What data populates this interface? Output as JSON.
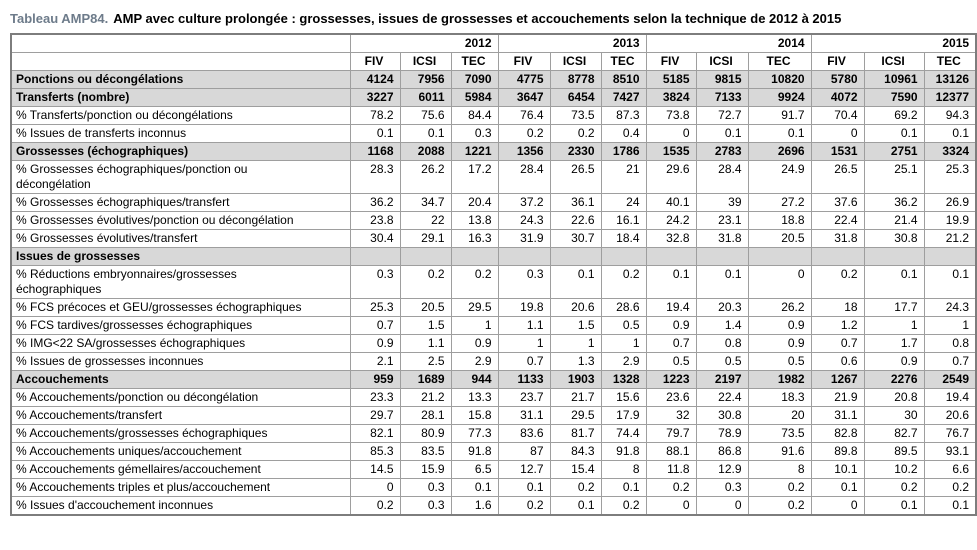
{
  "title": {
    "prefix": "Tableau AMP84.",
    "text": "AMP avec culture prolongée : grossesses, issues de grossesses et accouchements selon la technique de 2012 à 2015"
  },
  "colors": {
    "section_row_background": "#d8d8d8",
    "grid_border": "#9e9e9e",
    "outer_border": "#7d7d7d",
    "title_prefix": "#6d7b8a"
  },
  "table": {
    "years": [
      "2012",
      "2013",
      "2014",
      "2015"
    ],
    "sub_columns": [
      "FIV",
      "ICSI",
      "TEC"
    ],
    "rows": [
      {
        "label": "Ponctions ou décongélations",
        "type": "section",
        "values": [
          "4124",
          "7956",
          "7090",
          "4775",
          "8778",
          "8510",
          "5185",
          "9815",
          "10820",
          "5780",
          "10961",
          "13126"
        ]
      },
      {
        "label": "Transferts (nombre)",
        "type": "section",
        "values": [
          "3227",
          "6011",
          "5984",
          "3647",
          "6454",
          "7427",
          "3824",
          "7133",
          "9924",
          "4072",
          "7590",
          "12377"
        ]
      },
      {
        "label": "% Transferts/ponction ou décongélations",
        "type": "data",
        "values": [
          "78.2",
          "75.6",
          "84.4",
          "76.4",
          "73.5",
          "87.3",
          "73.8",
          "72.7",
          "91.7",
          "70.4",
          "69.2",
          "94.3"
        ]
      },
      {
        "label": "% Issues de transferts inconnus",
        "type": "data",
        "values": [
          "0.1",
          "0.1",
          "0.3",
          "0.2",
          "0.2",
          "0.4",
          "0",
          "0.1",
          "0.1",
          "0",
          "0.1",
          "0.1"
        ]
      },
      {
        "label": "Grossesses (échographiques)",
        "type": "section",
        "values": [
          "1168",
          "2088",
          "1221",
          "1356",
          "2330",
          "1786",
          "1535",
          "2783",
          "2696",
          "1531",
          "2751",
          "3324"
        ]
      },
      {
        "label": "% Grossesses échographiques/ponction ou\ndécongélation",
        "type": "data",
        "values": [
          "28.3",
          "26.2",
          "17.2",
          "28.4",
          "26.5",
          "21",
          "29.6",
          "28.4",
          "24.9",
          "26.5",
          "25.1",
          "25.3"
        ]
      },
      {
        "label": "% Grossesses échographiques/transfert",
        "type": "data",
        "values": [
          "36.2",
          "34.7",
          "20.4",
          "37.2",
          "36.1",
          "24",
          "40.1",
          "39",
          "27.2",
          "37.6",
          "36.2",
          "26.9"
        ]
      },
      {
        "label": "% Grossesses évolutives/ponction ou décongélation",
        "type": "data",
        "values": [
          "23.8",
          "22",
          "13.8",
          "24.3",
          "22.6",
          "16.1",
          "24.2",
          "23.1",
          "18.8",
          "22.4",
          "21.4",
          "19.9"
        ]
      },
      {
        "label": "% Grossesses évolutives/transfert",
        "type": "data",
        "values": [
          "30.4",
          "29.1",
          "16.3",
          "31.9",
          "30.7",
          "18.4",
          "32.8",
          "31.8",
          "20.5",
          "31.8",
          "30.8",
          "21.2"
        ]
      },
      {
        "label": "Issues de grossesses",
        "type": "section",
        "values": [
          "",
          "",
          "",
          "",
          "",
          "",
          "",
          "",
          "",
          "",
          "",
          ""
        ]
      },
      {
        "label": "% Réductions embryonnaires/grossesses\néchographiques",
        "type": "data",
        "values": [
          "0.3",
          "0.2",
          "0.2",
          "0.3",
          "0.1",
          "0.2",
          "0.1",
          "0.1",
          "0",
          "0.2",
          "0.1",
          "0.1"
        ]
      },
      {
        "label": "% FCS précoces et GEU/grossesses échographiques",
        "type": "data",
        "values": [
          "25.3",
          "20.5",
          "29.5",
          "19.8",
          "20.6",
          "28.6",
          "19.4",
          "20.3",
          "26.2",
          "18",
          "17.7",
          "24.3"
        ]
      },
      {
        "label": "% FCS tardives/grossesses échographiques",
        "type": "data",
        "values": [
          "0.7",
          "1.5",
          "1",
          "1.1",
          "1.5",
          "0.5",
          "0.9",
          "1.4",
          "0.9",
          "1.2",
          "1",
          "1"
        ]
      },
      {
        "label": "% IMG<22 SA/grossesses échographiques",
        "type": "data",
        "values": [
          "0.9",
          "1.1",
          "0.9",
          "1",
          "1",
          "1",
          "0.7",
          "0.8",
          "0.9",
          "0.7",
          "1.7",
          "0.8"
        ]
      },
      {
        "label": "% Issues de grossesses inconnues",
        "type": "data",
        "values": [
          "2.1",
          "2.5",
          "2.9",
          "0.7",
          "1.3",
          "2.9",
          "0.5",
          "0.5",
          "0.5",
          "0.6",
          "0.9",
          "0.7"
        ]
      },
      {
        "label": "Accouchements",
        "type": "section",
        "values": [
          "959",
          "1689",
          "944",
          "1133",
          "1903",
          "1328",
          "1223",
          "2197",
          "1982",
          "1267",
          "2276",
          "2549"
        ]
      },
      {
        "label": "% Accouchements/ponction ou décongélation",
        "type": "data",
        "values": [
          "23.3",
          "21.2",
          "13.3",
          "23.7",
          "21.7",
          "15.6",
          "23.6",
          "22.4",
          "18.3",
          "21.9",
          "20.8",
          "19.4"
        ]
      },
      {
        "label": "% Accouchements/transfert",
        "type": "data",
        "values": [
          "29.7",
          "28.1",
          "15.8",
          "31.1",
          "29.5",
          "17.9",
          "32",
          "30.8",
          "20",
          "31.1",
          "30",
          "20.6"
        ]
      },
      {
        "label": "% Accouchements/grossesses échographiques",
        "type": "data",
        "values": [
          "82.1",
          "80.9",
          "77.3",
          "83.6",
          "81.7",
          "74.4",
          "79.7",
          "78.9",
          "73.5",
          "82.8",
          "82.7",
          "76.7"
        ]
      },
      {
        "label": "% Accouchements uniques/accouchement",
        "type": "data",
        "values": [
          "85.3",
          "83.5",
          "91.8",
          "87",
          "84.3",
          "91.8",
          "88.1",
          "86.8",
          "91.6",
          "89.8",
          "89.5",
          "93.1"
        ]
      },
      {
        "label": "% Accouchements gémellaires/accouchement",
        "type": "data",
        "values": [
          "14.5",
          "15.9",
          "6.5",
          "12.7",
          "15.4",
          "8",
          "11.8",
          "12.9",
          "8",
          "10.1",
          "10.2",
          "6.6"
        ]
      },
      {
        "label": "% Accouchements triples et plus/accouchement",
        "type": "data",
        "values": [
          "0",
          "0.3",
          "0.1",
          "0.1",
          "0.2",
          "0.1",
          "0.2",
          "0.3",
          "0.2",
          "0.1",
          "0.2",
          "0.2"
        ]
      },
      {
        "label": "% Issues d'accouchement inconnues",
        "type": "data",
        "values": [
          "0.2",
          "0.3",
          "1.6",
          "0.2",
          "0.1",
          "0.2",
          "0",
          "0",
          "0.2",
          "0",
          "0.1",
          "0.1"
        ]
      }
    ]
  }
}
